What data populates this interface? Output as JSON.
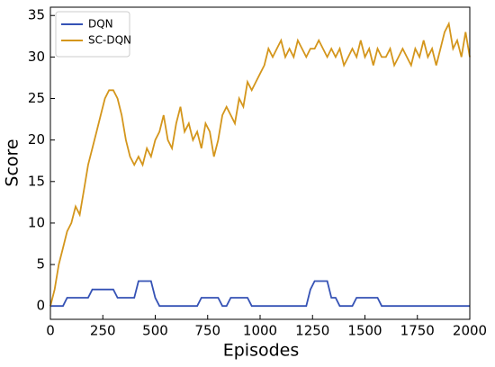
{
  "chart_data": {
    "type": "line",
    "x_label": "Episodes",
    "y_label": "Score",
    "x": [
      0,
      20,
      40,
      60,
      80,
      100,
      120,
      140,
      160,
      180,
      200,
      220,
      240,
      260,
      280,
      300,
      320,
      340,
      360,
      380,
      400,
      420,
      440,
      460,
      480,
      500,
      520,
      540,
      560,
      580,
      600,
      620,
      640,
      660,
      680,
      700,
      720,
      740,
      760,
      780,
      800,
      820,
      840,
      860,
      880,
      900,
      920,
      940,
      960,
      980,
      1000,
      1020,
      1040,
      1060,
      1080,
      1100,
      1120,
      1140,
      1160,
      1180,
      1200,
      1220,
      1240,
      1260,
      1280,
      1300,
      1320,
      1340,
      1360,
      1380,
      1400,
      1420,
      1440,
      1460,
      1480,
      1500,
      1520,
      1540,
      1560,
      1580,
      1600,
      1620,
      1640,
      1660,
      1680,
      1700,
      1720,
      1740,
      1760,
      1780,
      1800,
      1820,
      1840,
      1860,
      1880,
      1900,
      1920,
      1940,
      1960,
      1980,
      2000
    ],
    "series": [
      {
        "name": "DQN",
        "color": "#3552b5",
        "values": [
          0,
          0,
          0,
          0,
          1,
          1,
          1,
          1,
          1,
          1,
          2,
          2,
          2,
          2,
          2,
          2,
          1,
          1,
          1,
          1,
          1,
          3,
          3,
          3,
          3,
          1,
          0,
          0,
          0,
          0,
          0,
          0,
          0,
          0,
          0,
          0,
          1,
          1,
          1,
          1,
          1,
          0,
          0,
          1,
          1,
          1,
          1,
          1,
          0,
          0,
          0,
          0,
          0,
          0,
          0,
          0,
          0,
          0,
          0,
          0,
          0,
          0,
          2,
          3,
          3,
          3,
          3,
          1,
          1,
          0,
          0,
          0,
          0,
          1,
          1,
          1,
          1,
          1,
          1,
          0,
          0,
          0,
          0,
          0,
          0,
          0,
          0,
          0,
          0,
          0,
          0,
          0,
          0,
          0,
          0,
          0,
          0,
          0,
          0,
          0,
          0
        ]
      },
      {
        "name": "SC-DQN",
        "color": "#d4961c",
        "values": [
          0,
          2,
          5,
          7,
          9,
          10,
          12,
          11,
          14,
          17,
          19,
          21,
          23,
          25,
          26,
          26,
          25,
          23,
          20,
          18,
          17,
          18,
          17,
          19,
          18,
          20,
          21,
          23,
          20,
          19,
          22,
          24,
          21,
          22,
          20,
          21,
          19,
          22,
          21,
          18,
          20,
          23,
          24,
          23,
          22,
          25,
          24,
          27,
          26,
          27,
          28,
          29,
          31,
          30,
          31,
          32,
          30,
          31,
          30,
          32,
          31,
          30,
          31,
          31,
          32,
          31,
          30,
          31,
          30,
          31,
          29,
          30,
          31,
          30,
          32,
          30,
          31,
          29,
          31,
          30,
          30,
          31,
          29,
          30,
          31,
          30,
          29,
          31,
          30,
          32,
          30,
          31,
          29,
          31,
          33,
          34,
          31,
          32,
          30,
          33,
          30
        ]
      }
    ],
    "xlim": [
      0,
      2000
    ],
    "xticks": [
      0,
      250,
      500,
      750,
      1000,
      1250,
      1500,
      1750,
      2000
    ],
    "ylim": [
      -1.6,
      36
    ],
    "yticks": [
      0,
      5,
      10,
      15,
      20,
      25,
      30,
      35
    ],
    "legend": "upper left"
  }
}
